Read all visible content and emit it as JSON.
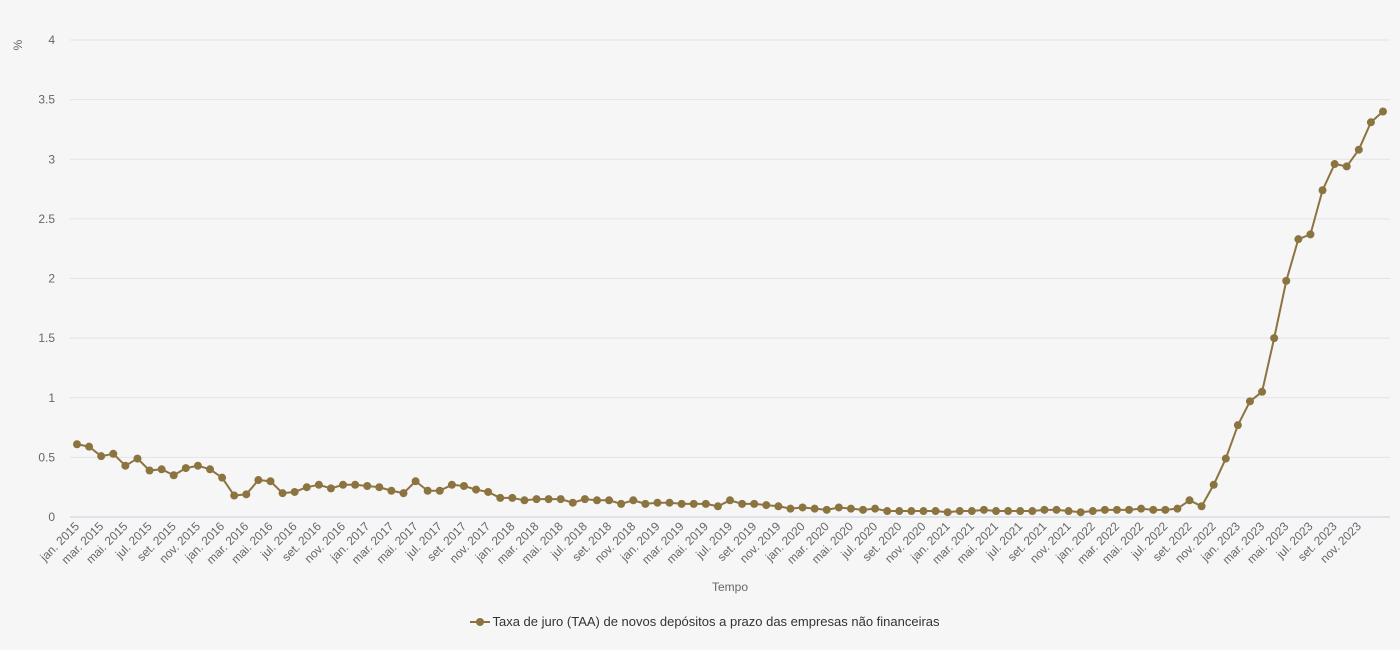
{
  "chart_data": {
    "type": "line",
    "ylabel": "%",
    "xlabel": "Tempo",
    "ylim": [
      0,
      4
    ],
    "yticks": [
      "0",
      "0.5",
      "1",
      "1.5",
      "2",
      "2.5",
      "3",
      "3.5",
      "4"
    ],
    "xtick_labels": [
      "jan. 2015",
      "mar. 2015",
      "mai. 2015",
      "jul. 2015",
      "set. 2015",
      "nov. 2015",
      "jan. 2016",
      "mar. 2016",
      "mai. 2016",
      "jul. 2016",
      "set. 2016",
      "nov. 2016",
      "jan. 2017",
      "mar. 2017",
      "mai. 2017",
      "jul. 2017",
      "set. 2017",
      "nov. 2017",
      "jan. 2018",
      "mar. 2018",
      "mai. 2018",
      "jul. 2018",
      "set. 2018",
      "nov. 2018",
      "jan. 2019",
      "mar. 2019",
      "mai. 2019",
      "jul. 2019",
      "set. 2019",
      "nov. 2019",
      "jan. 2020",
      "mar. 2020",
      "mai. 2020",
      "jul. 2020",
      "set. 2020",
      "nov. 2020",
      "jan. 2021",
      "mar. 2021",
      "mai. 2021",
      "jul. 2021",
      "set. 2021",
      "nov. 2021",
      "jan. 2022",
      "mar. 2022",
      "mai. 2022",
      "jul. 2022",
      "set. 2022",
      "nov. 2022",
      "jan. 2023",
      "mar. 2023",
      "mai. 2023",
      "jul. 2023",
      "set. 2023",
      "nov. 2023"
    ],
    "grid": true,
    "legend_position": "bottom-center",
    "colors": {
      "series": "#8c7440",
      "grid": "#e3e3e3",
      "baseline": "#c5cde0"
    },
    "series": [
      {
        "name": "Taxa de juro (TAA) de novos depósitos a prazo das empresas não financeiras",
        "values": [
          0.61,
          0.59,
          0.51,
          0.53,
          0.43,
          0.49,
          0.39,
          0.4,
          0.35,
          0.41,
          0.43,
          0.4,
          0.33,
          0.18,
          0.19,
          0.31,
          0.3,
          0.2,
          0.21,
          0.25,
          0.27,
          0.24,
          0.27,
          0.27,
          0.26,
          0.25,
          0.22,
          0.2,
          0.3,
          0.22,
          0.22,
          0.27,
          0.26,
          0.23,
          0.21,
          0.16,
          0.16,
          0.14,
          0.15,
          0.15,
          0.15,
          0.12,
          0.15,
          0.14,
          0.14,
          0.11,
          0.14,
          0.11,
          0.12,
          0.12,
          0.11,
          0.11,
          0.11,
          0.09,
          0.14,
          0.11,
          0.11,
          0.1,
          0.09,
          0.07,
          0.08,
          0.07,
          0.06,
          0.08,
          0.07,
          0.06,
          0.07,
          0.05,
          0.05,
          0.05,
          0.05,
          0.05,
          0.04,
          0.05,
          0.05,
          0.06,
          0.05,
          0.05,
          0.05,
          0.05,
          0.06,
          0.06,
          0.05,
          0.04,
          0.05,
          0.06,
          0.06,
          0.06,
          0.07,
          0.06,
          0.06,
          0.07,
          0.14,
          0.09,
          0.27,
          0.49,
          0.77,
          0.97,
          1.05,
          1.5,
          1.98,
          2.33,
          2.37,
          2.74,
          2.96,
          2.94,
          3.08,
          3.31,
          3.4
        ]
      }
    ]
  }
}
